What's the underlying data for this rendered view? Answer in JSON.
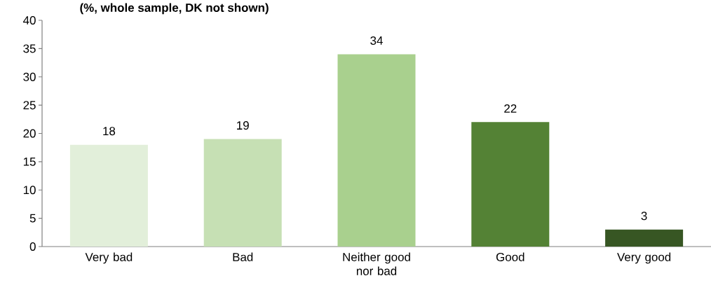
{
  "chart_data": {
    "type": "bar",
    "title": "(%, whole sample, DK not shown)",
    "categories": [
      "Very bad",
      "Bad",
      "Neither good nor bad",
      "Good",
      "Very good"
    ],
    "values": [
      18,
      19,
      34,
      22,
      3
    ],
    "colors": [
      "#e2efda",
      "#c6e0b4",
      "#a9d08e",
      "#548235",
      "#375623"
    ],
    "ylim": [
      0,
      40
    ],
    "yticks": [
      0,
      5,
      10,
      15,
      20,
      25,
      30,
      35,
      40
    ],
    "data_labels": true
  }
}
